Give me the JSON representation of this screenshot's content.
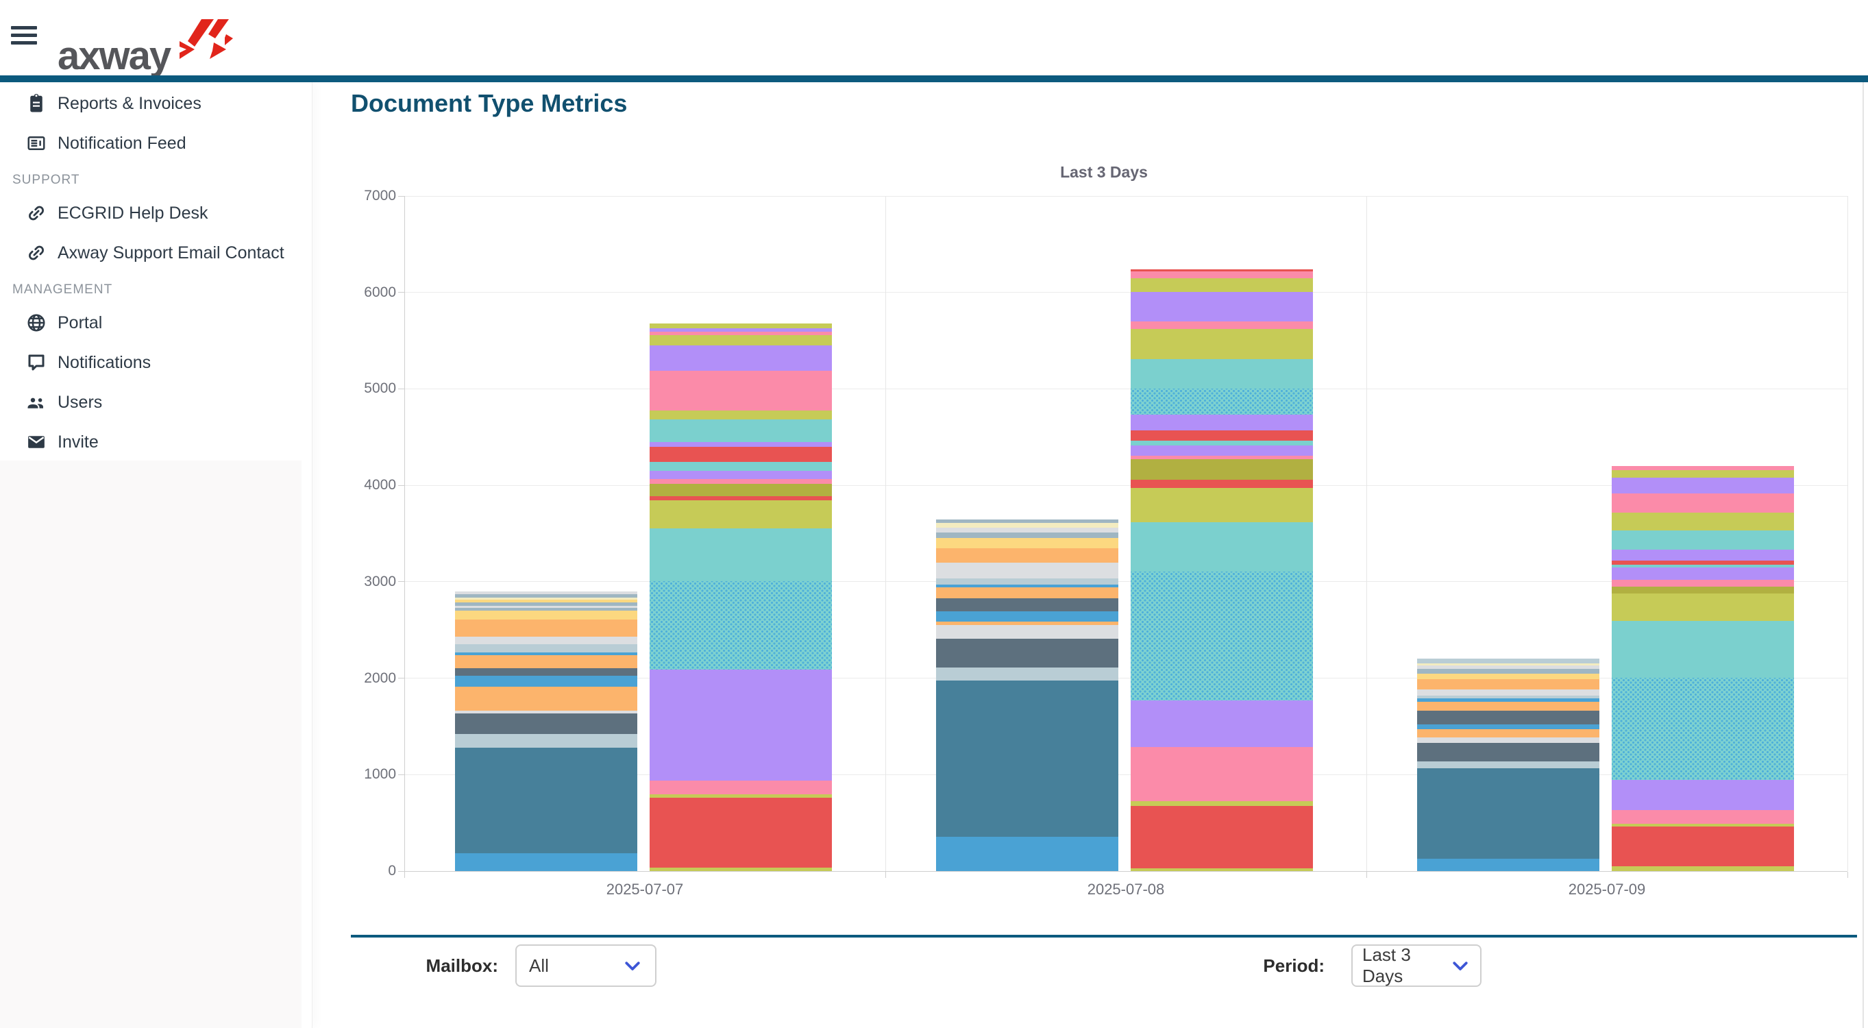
{
  "header": {
    "brand": "axway"
  },
  "sidebar": {
    "entries": [
      {
        "type": "item",
        "label": "Reports & Invoices",
        "icon": "clipboard-icon"
      },
      {
        "type": "item",
        "label": "Notification Feed",
        "icon": "feed-icon"
      },
      {
        "type": "section",
        "label": "SUPPORT"
      },
      {
        "type": "item",
        "label": "ECGRID Help Desk",
        "icon": "link-icon"
      },
      {
        "type": "item",
        "label": "Axway Support Email Contact",
        "icon": "link-icon"
      },
      {
        "type": "section",
        "label": "MANAGEMENT"
      },
      {
        "type": "item",
        "label": "Portal",
        "icon": "globe-icon"
      },
      {
        "type": "item",
        "label": "Notifications",
        "icon": "chat-icon"
      },
      {
        "type": "item",
        "label": "Users",
        "icon": "users-icon"
      },
      {
        "type": "item",
        "label": "Invite",
        "icon": "envelope-icon"
      }
    ]
  },
  "main": {
    "page_title": "Document Type Metrics",
    "controls": {
      "mailbox_label": "Mailbox:",
      "mailbox_value": "All",
      "period_label": "Period:",
      "period_value": "Last 3 Days"
    }
  },
  "chart_data": {
    "type": "bar",
    "stacked": true,
    "title": "Last 3 Days",
    "categories": [
      "2025-07-07",
      "2025-07-08",
      "2025-07-09"
    ],
    "bars_per_category": 2,
    "ylim": [
      0,
      7000
    ],
    "ytick_interval": 1000,
    "grid": true,
    "legend_position": "none",
    "bar_totals_approx": [
      2900,
      5680,
      3650,
      6240,
      2210,
      4200
    ],
    "palette": {
      "blue": "#4aa2d4",
      "darkteal": "#47809a",
      "ltbluegray": "#b9cdd5",
      "slate": "#5d707e",
      "orange": "#fcb46c",
      "ltgray": "#dcdee1",
      "yellow": "#fcd880",
      "paleyellow": "#f3ecc0",
      "steelgray": "#9fb6c2",
      "turquoise": "#7bd0ce",
      "turquoise_hatch": "pattern-dots",
      "purple": "#b28ff8",
      "pink": "#fb8ba9",
      "red": "#e85352",
      "olive": "#c6cb57",
      "darkolive": "#b1b041"
    },
    "bars": [
      {
        "category": "2025-07-07",
        "slot": 0,
        "index": 0,
        "segments": [
          [
            "blue",
            185
          ],
          [
            "darkteal",
            1095
          ],
          [
            "ltbluegray",
            142
          ],
          [
            "slate",
            213
          ],
          [
            "ltgray",
            28
          ],
          [
            "orange",
            249
          ],
          [
            "blue",
            114
          ],
          [
            "slate",
            78
          ],
          [
            "orange",
            135
          ],
          [
            "blue",
            28
          ],
          [
            "ltbluegray",
            85
          ],
          [
            "ltgray",
            78
          ],
          [
            "orange",
            178
          ],
          [
            "yellow",
            92
          ],
          [
            "steelgray",
            28
          ],
          [
            "ltgray",
            21
          ],
          [
            "steelgray",
            36
          ],
          [
            "yellow",
            28
          ],
          [
            "paleyellow",
            21
          ],
          [
            "steelgray",
            36
          ],
          [
            "ltgray",
            28
          ]
        ]
      },
      {
        "category": "2025-07-07",
        "slot": 0,
        "index": 1,
        "segments": [
          [
            "olive",
            36
          ],
          [
            "red",
            725
          ],
          [
            "olive",
            36
          ],
          [
            "pink",
            142
          ],
          [
            "purple",
            1151
          ],
          [
            "turquoise_hatch",
            917
          ],
          [
            "turquoise",
            547
          ],
          [
            "olive",
            291
          ],
          [
            "red",
            43
          ],
          [
            "darkolive",
            128
          ],
          [
            "pink",
            50
          ],
          [
            "purple",
            85
          ],
          [
            "turquoise",
            92
          ],
          [
            "red",
            156
          ],
          [
            "purple",
            50
          ],
          [
            "turquoise",
            235
          ],
          [
            "olive",
            92
          ],
          [
            "pink",
            412
          ],
          [
            "purple",
            263
          ],
          [
            "olive",
            107
          ],
          [
            "pink",
            36
          ],
          [
            "purple",
            36
          ],
          [
            "olive",
            50
          ]
        ]
      },
      {
        "category": "2025-07-08",
        "slot": 1,
        "index": 0,
        "segments": [
          [
            "blue",
            355
          ],
          [
            "darkteal",
            1620
          ],
          [
            "ltbluegray",
            135
          ],
          [
            "slate",
            298
          ],
          [
            "ltgray",
            142
          ],
          [
            "orange",
            36
          ],
          [
            "blue",
            107
          ],
          [
            "slate",
            135
          ],
          [
            "orange",
            114
          ],
          [
            "blue",
            28
          ],
          [
            "ltbluegray",
            64
          ],
          [
            "ltgray",
            163
          ],
          [
            "orange",
            149
          ],
          [
            "yellow",
            107
          ],
          [
            "steelgray",
            57
          ],
          [
            "ltgray",
            50
          ],
          [
            "paleyellow",
            50
          ],
          [
            "steelgray",
            36
          ]
        ]
      },
      {
        "category": "2025-07-08",
        "slot": 1,
        "index": 1,
        "segments": [
          [
            "olive",
            28
          ],
          [
            "red",
            647
          ],
          [
            "olive",
            50
          ],
          [
            "pink",
            561
          ],
          [
            "purple",
            483
          ],
          [
            "turquoise_hatch",
            1337
          ],
          [
            "turquoise",
            512
          ],
          [
            "olive",
            355
          ],
          [
            "red",
            85
          ],
          [
            "darkolive",
            213
          ],
          [
            "pink",
            36
          ],
          [
            "purple",
            107
          ],
          [
            "turquoise",
            50
          ],
          [
            "red",
            107
          ],
          [
            "purple",
            163
          ],
          [
            "turquoise_hatch",
            270
          ],
          [
            "turquoise",
            306
          ],
          [
            "olive",
            313
          ],
          [
            "pink",
            78
          ],
          [
            "purple",
            306
          ],
          [
            "olive",
            142
          ],
          [
            "pink",
            71
          ],
          [
            "red",
            21
          ]
        ]
      },
      {
        "category": "2025-07-09",
        "slot": 2,
        "index": 0,
        "segments": [
          [
            "blue",
            128
          ],
          [
            "darkteal",
            940
          ],
          [
            "ltbluegray",
            71
          ],
          [
            "slate",
            192
          ],
          [
            "ltgray",
            57
          ],
          [
            "orange",
            85
          ],
          [
            "blue",
            50
          ],
          [
            "slate",
            142
          ],
          [
            "orange",
            92
          ],
          [
            "blue",
            36
          ],
          [
            "ltbluegray",
            28
          ],
          [
            "ltgray",
            64
          ],
          [
            "orange",
            107
          ],
          [
            "yellow",
            57
          ],
          [
            "steelgray",
            50
          ],
          [
            "ltgray",
            36
          ],
          [
            "paleyellow",
            21
          ],
          [
            "ltbluegray",
            50
          ]
        ]
      },
      {
        "category": "2025-07-09",
        "slot": 2,
        "index": 1,
        "segments": [
          [
            "olive",
            50
          ],
          [
            "red",
            412
          ],
          [
            "olive",
            28
          ],
          [
            "pink",
            142
          ],
          [
            "purple",
            313
          ],
          [
            "turquoise_hatch",
            1059
          ],
          [
            "turquoise",
            590
          ],
          [
            "olive",
            284
          ],
          [
            "darkolive",
            71
          ],
          [
            "pink",
            71
          ],
          [
            "purple",
            128
          ],
          [
            "turquoise",
            28
          ],
          [
            "red",
            43
          ],
          [
            "purple",
            114
          ],
          [
            "turquoise",
            199
          ],
          [
            "olive",
            185
          ],
          [
            "pink",
            199
          ],
          [
            "purple",
            163
          ],
          [
            "olive",
            78
          ],
          [
            "pink",
            43
          ]
        ]
      }
    ]
  },
  "colors": {
    "topbar": "#0c5a7e",
    "page_title": "#11506f",
    "dropdown_chevron": "#3d56d6",
    "logo_red": "#e1251b"
  }
}
